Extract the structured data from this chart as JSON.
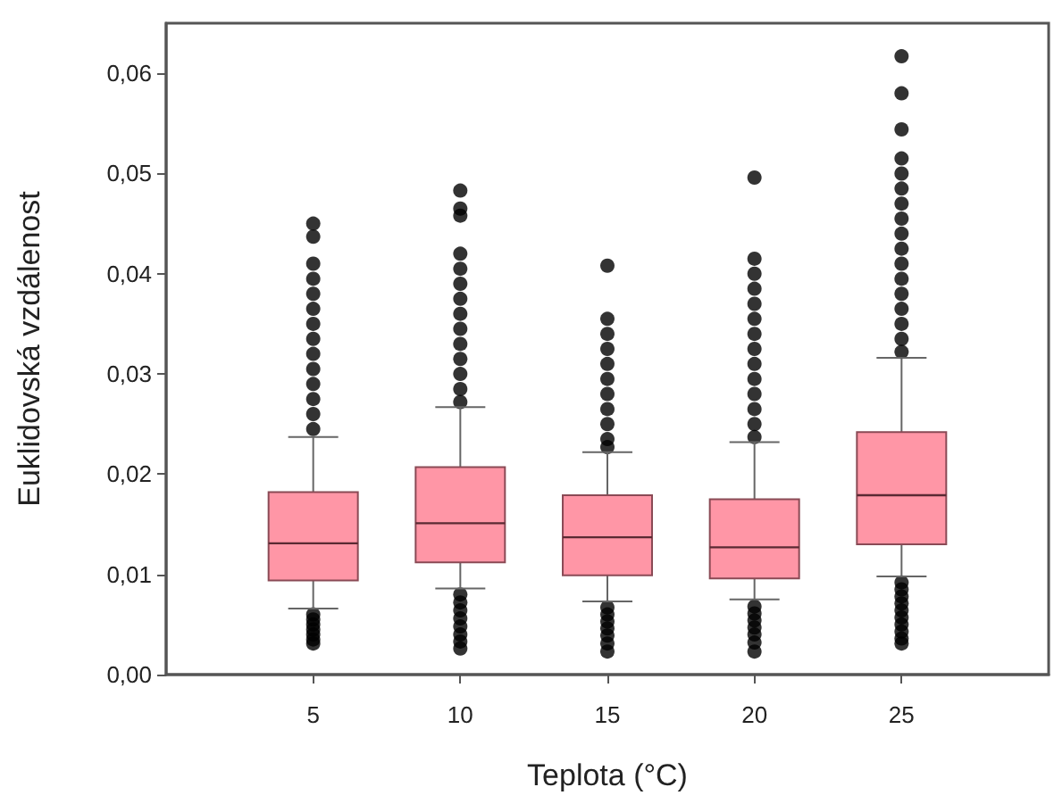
{
  "chart_data": {
    "type": "box",
    "xlabel": "Teplota (°C)",
    "ylabel": "Euklidovská vzdálenost",
    "x": [
      5,
      10,
      15,
      20,
      25
    ],
    "xlim": [
      0,
      30
    ],
    "xticks": [
      5,
      10,
      15,
      20,
      25
    ],
    "ylim": [
      0,
      0.065
    ],
    "yticks": [
      {
        "value": 0,
        "label": "0,00"
      },
      {
        "value": 0.01,
        "label": "0,01"
      },
      {
        "value": 0.02,
        "label": "0,02"
      },
      {
        "value": 0.03,
        "label": "0,03"
      },
      {
        "value": 0.04,
        "label": "0,04"
      },
      {
        "value": 0.05,
        "label": "0,05"
      },
      {
        "value": 0.06,
        "label": "0,06"
      }
    ],
    "color": "#ff96a6",
    "grid": false,
    "boxes": [
      {
        "low": 0.0066,
        "q1": 0.0094,
        "median": 0.0131,
        "q3": 0.0182,
        "high": 0.0237,
        "outliers": [
          0.045,
          0.0437,
          0.041,
          0.0395,
          0.038,
          0.0365,
          0.035,
          0.0335,
          0.032,
          0.0305,
          0.029,
          0.0275,
          0.026,
          0.0245,
          0.006,
          0.0055,
          0.005,
          0.0045,
          0.004,
          0.0035,
          0.0031
        ]
      },
      {
        "low": 0.0086,
        "q1": 0.0112,
        "median": 0.0151,
        "q3": 0.0207,
        "high": 0.0267,
        "outliers": [
          0.0483,
          0.0465,
          0.0458,
          0.042,
          0.0405,
          0.039,
          0.0375,
          0.036,
          0.0345,
          0.033,
          0.0315,
          0.03,
          0.0285,
          0.0272,
          0.008,
          0.0072,
          0.0064,
          0.0056,
          0.0048,
          0.004,
          0.0033,
          0.0026
        ]
      },
      {
        "low": 0.0073,
        "q1": 0.0099,
        "median": 0.0137,
        "q3": 0.0179,
        "high": 0.0222,
        "outliers": [
          0.0408,
          0.0355,
          0.034,
          0.0325,
          0.031,
          0.0295,
          0.028,
          0.0265,
          0.025,
          0.0235,
          0.0227,
          0.0067,
          0.006,
          0.0053,
          0.0046,
          0.0039,
          0.0031,
          0.0023
        ]
      },
      {
        "low": 0.0075,
        "q1": 0.0096,
        "median": 0.0127,
        "q3": 0.0175,
        "high": 0.0232,
        "outliers": [
          0.0496,
          0.0415,
          0.04,
          0.0385,
          0.037,
          0.0355,
          0.034,
          0.0325,
          0.031,
          0.0295,
          0.028,
          0.0265,
          0.025,
          0.0237,
          0.0068,
          0.0061,
          0.0054,
          0.0047,
          0.004,
          0.0032,
          0.0023
        ]
      },
      {
        "low": 0.0098,
        "q1": 0.013,
        "median": 0.0179,
        "q3": 0.0242,
        "high": 0.0316,
        "outliers": [
          0.0617,
          0.058,
          0.0544,
          0.0515,
          0.05,
          0.0485,
          0.047,
          0.0455,
          0.044,
          0.0425,
          0.041,
          0.0395,
          0.038,
          0.0365,
          0.035,
          0.0335,
          0.0322,
          0.0092,
          0.0085,
          0.0078,
          0.0071,
          0.0064,
          0.0057,
          0.005,
          0.0043,
          0.0036,
          0.0031
        ]
      }
    ]
  }
}
